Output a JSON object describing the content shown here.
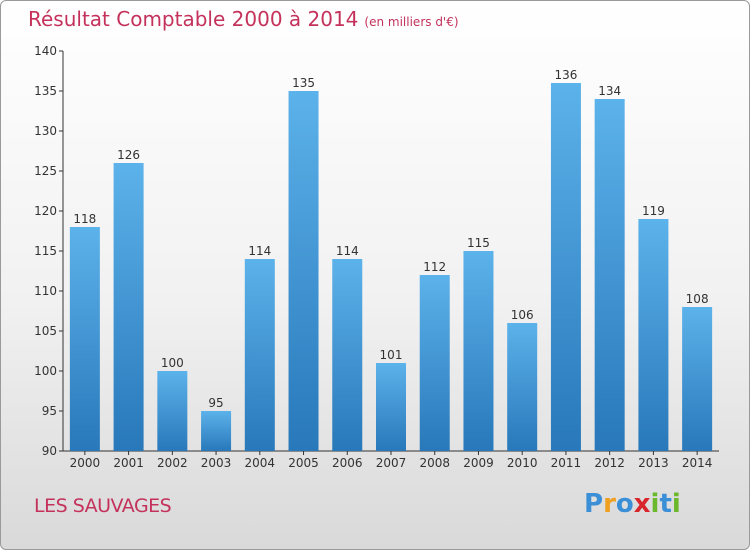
{
  "title": "Résultat Comptable 2000 à 2014",
  "unit": "(en milliers d'€)",
  "place": "LES SAUVAGES",
  "logo": {
    "letters": [
      "P",
      "r",
      "o",
      "x",
      "i",
      "t",
      "i"
    ],
    "colors": [
      "#3a8fd6",
      "#f0a020",
      "#3a8fd6",
      "#d8262c",
      "#6cb82c",
      "#3a8fd6",
      "#6cb82c"
    ]
  },
  "colors": {
    "bar_top": "#5cb2ea",
    "bar_bottom": "#2878ba",
    "title": "#c4325c"
  },
  "chart_data": {
    "type": "bar",
    "title": "Résultat Comptable 2000 à 2014",
    "ylabel": "(en milliers d'€)",
    "xlabel": "",
    "categories": [
      "2000",
      "2001",
      "2002",
      "2003",
      "2004",
      "2005",
      "2006",
      "2007",
      "2008",
      "2009",
      "2010",
      "2011",
      "2012",
      "2013",
      "2014"
    ],
    "values": [
      118,
      126,
      100,
      95,
      114,
      135,
      114,
      101,
      112,
      115,
      106,
      136,
      134,
      119,
      108
    ],
    "ylim": [
      90,
      140
    ],
    "yticks": [
      90,
      95,
      100,
      105,
      110,
      115,
      120,
      125,
      130,
      135,
      140
    ],
    "grid": false
  }
}
